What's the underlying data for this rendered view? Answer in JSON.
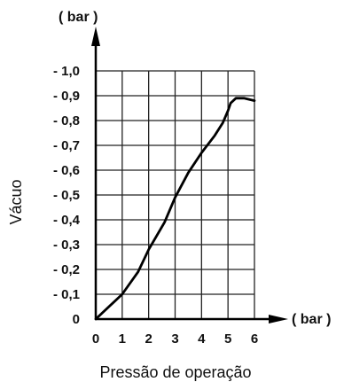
{
  "chart_data": {
    "type": "line",
    "xlabel": "Pressão de operação",
    "ylabel": "Vácuo",
    "x_unit": "( bar )",
    "y_unit": "( bar )",
    "xlim": [
      0,
      6
    ],
    "ylim": [
      0,
      -1.0
    ],
    "x_ticks": [
      "0",
      "1",
      "2",
      "3",
      "4",
      "5",
      "6"
    ],
    "y_ticks": [
      "0",
      "- 0,1",
      "- 0,2",
      "- 0,3",
      "- 0,4",
      "- 0,5",
      "- 0,6",
      "- 0,7",
      "- 0,8",
      "- 0,9",
      "- 1,0"
    ],
    "grid": true,
    "series": [
      {
        "x": [
          0,
          1,
          1.6,
          2,
          2.6,
          3,
          3.5,
          4,
          4.5,
          4.8,
          5,
          5.1,
          5.3,
          5.6,
          6
        ],
        "y": [
          0,
          -0.1,
          -0.19,
          -0.28,
          -0.39,
          -0.49,
          -0.59,
          -0.67,
          -0.74,
          -0.79,
          -0.84,
          -0.87,
          -0.89,
          -0.89,
          -0.88
        ]
      }
    ]
  }
}
